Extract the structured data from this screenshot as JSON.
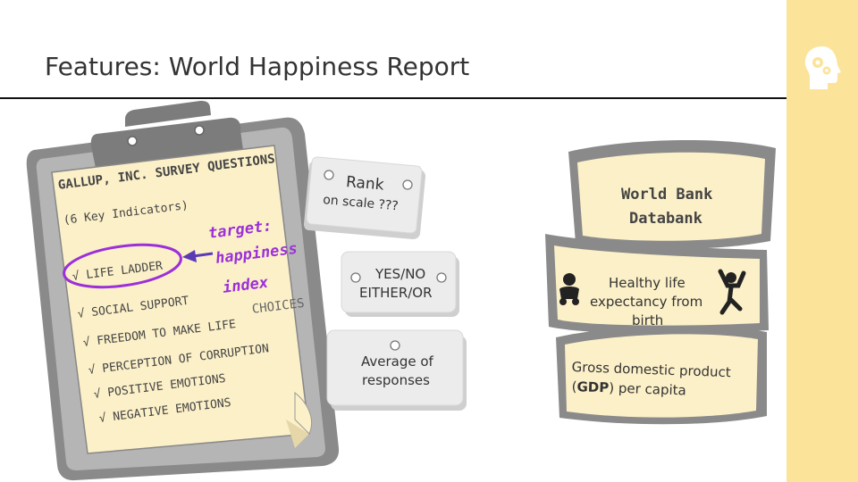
{
  "slide": {
    "title": "Features: World Happiness Report"
  },
  "clipboard": {
    "heading": "GALLUP, INC. SURVEY QUESTIONS",
    "subheading": "(6 Key Indicators)",
    "items": [
      "√ LIFE LADDER",
      "√ SOCIAL SUPPORT",
      "√ FREEDOM TO MAKE LIFE",
      "√ PERCEPTION OF CORRUPTION",
      "√ POSITIVE EMOTIONS",
      "√ NEGATIVE EMOTIONS"
    ],
    "choices_word": "CHOICES"
  },
  "annotation": {
    "line1": "target:",
    "line2": "happiness",
    "line3": "index",
    "color": "#9b30d9"
  },
  "tags": {
    "rank_title": "Rank",
    "rank_sub": "on scale ???",
    "yesno_line1": "YES/NO",
    "yesno_line2": "EITHER/OR",
    "average_line1": "Average of",
    "average_line2": "responses"
  },
  "databank": {
    "line1": "World Bank",
    "line2": "Databank",
    "life_line1": "Healthy life",
    "life_line2": "expectancy from",
    "life_line3": "birth",
    "gdp_line1": "Gross domestic product",
    "gdp_open": "(",
    "gdp_bold": "GDP",
    "gdp_rest": ") per capita"
  },
  "colors": {
    "paper": "#fcf0c8",
    "accent_stripe": "#fbe49a",
    "clipboard_gray": "#8a8a8a",
    "tag_gray": "#ececec"
  },
  "icons": [
    "head-gears-icon",
    "baby-icon",
    "jumping-person-icon",
    "pushpin-icon"
  ]
}
